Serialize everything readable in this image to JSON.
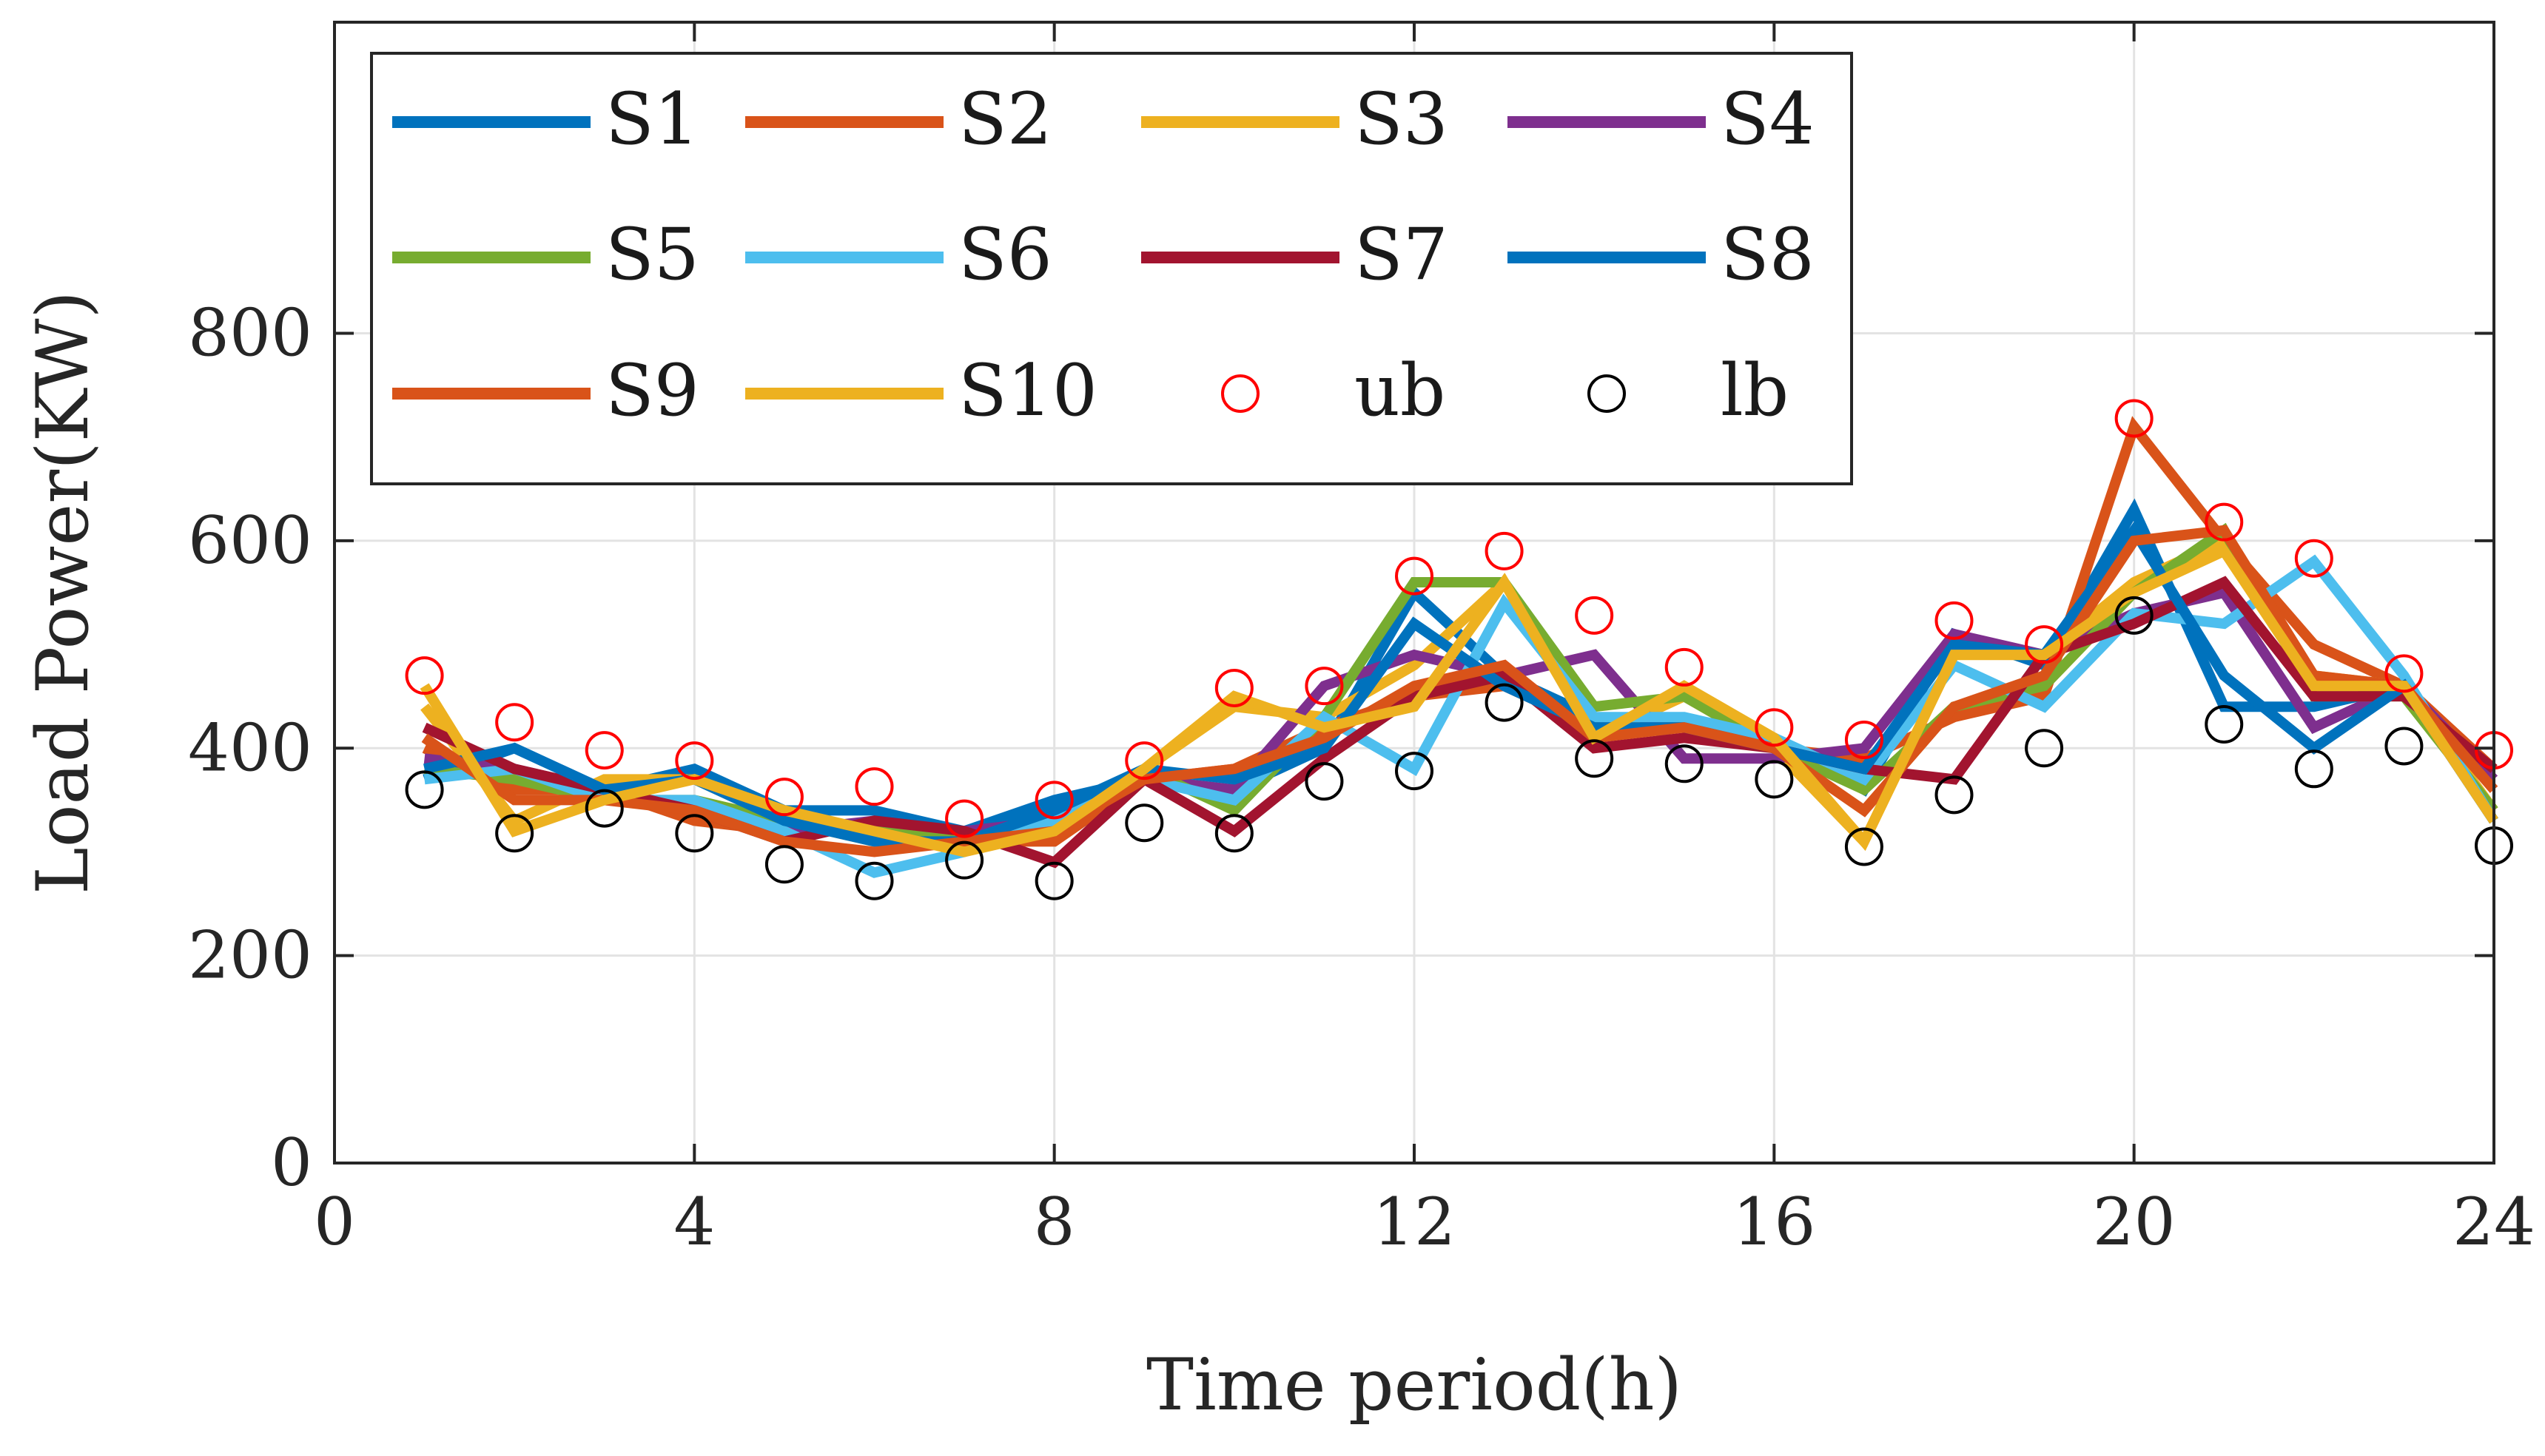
{
  "chart_data": {
    "type": "line",
    "xlabel": "Time period(h)",
    "ylabel": "Load Power(KW)",
    "xlim": [
      0,
      24
    ],
    "ylim": [
      0,
      1100
    ],
    "xticks": [
      0,
      4,
      8,
      12,
      16,
      20,
      24
    ],
    "yticks": [
      0,
      200,
      400,
      600,
      800
    ],
    "grid": true,
    "legend_position": "top-left",
    "x": [
      1,
      2,
      3,
      4,
      5,
      6,
      7,
      8,
      9,
      10,
      11,
      12,
      13,
      14,
      15,
      16,
      17,
      18,
      19,
      20,
      21,
      22,
      23,
      24
    ],
    "series": [
      {
        "name": "S1",
        "color": "#0072BD",
        "values": [
          370,
          400,
          360,
          380,
          340,
          340,
          320,
          350,
          370,
          360,
          400,
          550,
          470,
          430,
          420,
          410,
          360,
          510,
          480,
          630,
          440,
          440,
          460,
          330
        ]
      },
      {
        "name": "S2",
        "color": "#D95319",
        "values": [
          400,
          360,
          360,
          330,
          320,
          320,
          310,
          310,
          370,
          380,
          420,
          450,
          460,
          420,
          420,
          400,
          390,
          430,
          450,
          710,
          600,
          500,
          460,
          380
        ]
      },
      {
        "name": "S3",
        "color": "#EDB120",
        "values": [
          440,
          330,
          370,
          370,
          330,
          310,
          310,
          330,
          380,
          440,
          430,
          480,
          560,
          410,
          450,
          400,
          310,
          490,
          490,
          560,
          600,
          470,
          460,
          340
        ]
      },
      {
        "name": "S4",
        "color": "#7E2F8E",
        "values": [
          390,
          380,
          360,
          340,
          320,
          330,
          320,
          330,
          370,
          360,
          460,
          490,
          470,
          490,
          390,
          390,
          400,
          510,
          490,
          530,
          550,
          420,
          460,
          370
        ]
      },
      {
        "name": "S5",
        "color": "#77AC30",
        "values": [
          380,
          370,
          350,
          350,
          330,
          320,
          310,
          330,
          380,
          340,
          430,
          560,
          560,
          440,
          450,
          400,
          360,
          440,
          460,
          550,
          610,
          450,
          450,
          340
        ]
      },
      {
        "name": "S6",
        "color": "#4DBEEE",
        "values": [
          370,
          380,
          350,
          350,
          320,
          280,
          300,
          330,
          370,
          350,
          430,
          380,
          540,
          430,
          430,
          410,
          370,
          480,
          440,
          530,
          520,
          580,
          470,
          330
        ]
      },
      {
        "name": "S7",
        "color": "#A2142F",
        "values": [
          420,
          380,
          360,
          340,
          310,
          330,
          320,
          290,
          370,
          320,
          390,
          450,
          470,
          400,
          410,
          400,
          380,
          370,
          490,
          520,
          560,
          450,
          450,
          380
        ]
      },
      {
        "name": "S8",
        "color": "#0072BD",
        "values": [
          380,
          400,
          360,
          370,
          330,
          310,
          310,
          340,
          380,
          370,
          400,
          520,
          460,
          420,
          420,
          400,
          380,
          500,
          490,
          610,
          470,
          400,
          460,
          330
        ]
      },
      {
        "name": "S9",
        "color": "#D95319",
        "values": [
          410,
          350,
          350,
          340,
          310,
          300,
          310,
          320,
          370,
          380,
          410,
          460,
          480,
          410,
          420,
          400,
          340,
          440,
          470,
          600,
          610,
          470,
          460,
          360
        ]
      },
      {
        "name": "S10",
        "color": "#EDB120",
        "values": [
          460,
          320,
          350,
          370,
          340,
          320,
          300,
          320,
          380,
          450,
          420,
          440,
          560,
          410,
          460,
          410,
          310,
          490,
          490,
          550,
          590,
          460,
          460,
          330
        ]
      }
    ],
    "markers": [
      {
        "name": "ub",
        "color": "#FF0000",
        "values": [
          470,
          425,
          398,
          388,
          353,
          363,
          332,
          350,
          388,
          458,
          460,
          566,
          590,
          528,
          478,
          420,
          408,
          523,
          500,
          718,
          618,
          583,
          472,
          398
        ]
      },
      {
        "name": "lb",
        "color": "#000000",
        "values": [
          360,
          318,
          342,
          318,
          288,
          272,
          292,
          272,
          328,
          318,
          368,
          378,
          444,
          390,
          385,
          370,
          305,
          355,
          400,
          528,
          423,
          380,
          402,
          306
        ]
      }
    ]
  }
}
